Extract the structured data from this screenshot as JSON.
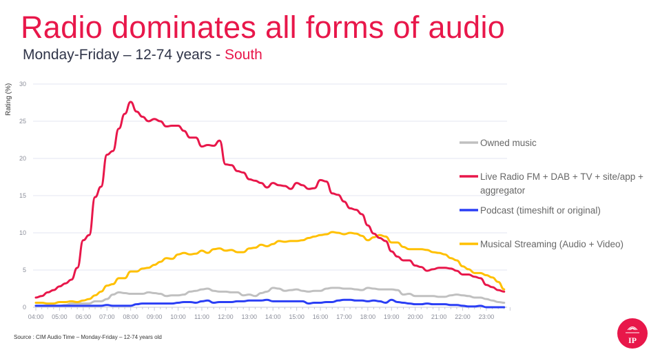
{
  "header": {
    "title": "Radio dominates all forms of audio",
    "subtitle_main": "Monday-Friday – 12-74 years - ",
    "subtitle_region": "South"
  },
  "footer": {
    "source": "Source : CIM Audio Time – Monday-Friday – 12-74 years old",
    "logo_text": "IP"
  },
  "colors": {
    "accent": "#e8174a",
    "owned": "#c0c0c0",
    "radio": "#e8174a",
    "podcast": "#2a3ef5",
    "streaming": "#ffc000"
  },
  "chart_data": {
    "type": "line",
    "title": "Radio dominates all forms of audio",
    "xlabel": "",
    "ylabel": "Rating (%)",
    "ylim": [
      0,
      30
    ],
    "yticks": [
      0,
      5,
      10,
      15,
      20,
      25,
      30
    ],
    "xticks": [
      "04:00",
      "05:00",
      "06:00",
      "07:00",
      "08:00",
      "09:00",
      "10:00",
      "11:00",
      "12:00",
      "13:00",
      "14:00",
      "15:00",
      "16:00",
      "17:00",
      "18:00",
      "19:00",
      "20:00",
      "21:00",
      "22:00",
      "23:00"
    ],
    "x_start_hour": 4,
    "x_step_minutes": 15,
    "grid": true,
    "legend_position": "right",
    "series": [
      {
        "name": "Owned music",
        "color": "#c0c0c0",
        "values": [
          0.2,
          0.2,
          0.2,
          0.2,
          0.2,
          0.3,
          0.5,
          0.5,
          0.5,
          0.5,
          0.8,
          0.8,
          1.1,
          1.7,
          2.0,
          1.9,
          1.8,
          1.8,
          1.8,
          2.0,
          1.9,
          1.8,
          1.5,
          1.6,
          1.6,
          1.7,
          2.1,
          2.2,
          2.4,
          2.5,
          2.2,
          2.1,
          2.1,
          2.0,
          2.0,
          1.6,
          1.7,
          1.5,
          1.9,
          2.1,
          2.6,
          2.5,
          2.2,
          2.3,
          2.4,
          2.2,
          2.1,
          2.2,
          2.2,
          2.5,
          2.6,
          2.6,
          2.5,
          2.5,
          2.4,
          2.3,
          2.6,
          2.5,
          2.4,
          2.4,
          2.4,
          2.3,
          1.7,
          1.8,
          1.5,
          1.5,
          1.5,
          1.5,
          1.4,
          1.4,
          1.6,
          1.7,
          1.6,
          1.5,
          1.3,
          1.3,
          1.1,
          0.9,
          0.7,
          0.6
        ]
      },
      {
        "name": "Live Radio FM + DAB + TV + site/app + aggregator",
        "color": "#e8174a",
        "values": [
          1.3,
          1.5,
          2.0,
          2.3,
          2.8,
          3.2,
          3.7,
          5.3,
          9.0,
          9.7,
          14.8,
          16.2,
          20.5,
          21.0,
          24.0,
          26.0,
          27.6,
          26.3,
          25.6,
          25.0,
          25.3,
          25.0,
          24.3,
          24.4,
          24.4,
          23.7,
          22.8,
          22.8,
          21.6,
          21.8,
          21.7,
          22.4,
          19.2,
          19.1,
          18.3,
          18.1,
          17.2,
          17.0,
          16.7,
          16.1,
          16.7,
          16.4,
          16.3,
          15.9,
          16.7,
          16.4,
          15.9,
          16.0,
          17.1,
          16.9,
          15.3,
          15.1,
          14.2,
          13.3,
          13.1,
          12.5,
          11.0,
          9.9,
          9.3,
          8.9,
          7.5,
          6.8,
          6.3,
          6.3,
          5.6,
          5.4,
          4.9,
          5.1,
          5.3,
          5.3,
          5.2,
          4.9,
          4.4,
          4.4,
          4.1,
          3.9,
          3.0,
          2.7,
          2.3,
          2.1
        ]
      },
      {
        "name": "Podcast (timeshift or original)",
        "color": "#2a3ef5",
        "values": [
          0.2,
          0.2,
          0.2,
          0.2,
          0.2,
          0.2,
          0.2,
          0.2,
          0.2,
          0.2,
          0.2,
          0.2,
          0.3,
          0.2,
          0.2,
          0.2,
          0.2,
          0.4,
          0.5,
          0.5,
          0.5,
          0.5,
          0.5,
          0.5,
          0.6,
          0.7,
          0.7,
          0.6,
          0.8,
          0.9,
          0.6,
          0.7,
          0.7,
          0.7,
          0.8,
          0.8,
          0.9,
          0.9,
          0.9,
          1.0,
          0.8,
          0.8,
          0.8,
          0.8,
          0.8,
          0.8,
          0.5,
          0.6,
          0.6,
          0.7,
          0.7,
          0.9,
          1.0,
          1.0,
          0.9,
          0.9,
          0.8,
          0.9,
          0.8,
          0.6,
          1.0,
          0.7,
          0.6,
          0.5,
          0.4,
          0.4,
          0.5,
          0.4,
          0.4,
          0.4,
          0.3,
          0.3,
          0.2,
          0.1,
          0.1,
          0.2,
          0.0,
          0.0,
          0.0,
          0.0
        ]
      },
      {
        "name": "Musical Streaming (Audio + Video)",
        "color": "#ffc000",
        "values": [
          0.6,
          0.6,
          0.5,
          0.5,
          0.7,
          0.7,
          0.8,
          0.7,
          0.9,
          1.1,
          1.6,
          2.1,
          2.9,
          3.1,
          3.9,
          3.9,
          4.8,
          4.8,
          5.2,
          5.3,
          5.7,
          6.1,
          6.6,
          6.5,
          7.1,
          7.3,
          7.1,
          7.2,
          7.6,
          7.3,
          7.8,
          7.9,
          7.6,
          7.7,
          7.4,
          7.4,
          7.9,
          8.0,
          8.4,
          8.2,
          8.5,
          8.9,
          8.8,
          8.9,
          8.9,
          9.0,
          9.3,
          9.5,
          9.7,
          9.8,
          10.1,
          10.0,
          9.8,
          10.0,
          9.9,
          9.6,
          9.0,
          9.4,
          9.7,
          9.5,
          8.7,
          8.7,
          8.1,
          7.8,
          7.8,
          7.8,
          7.7,
          7.4,
          7.3,
          7.1,
          6.6,
          6.3,
          5.5,
          5.1,
          4.6,
          4.6,
          4.3,
          4.0,
          3.4,
          2.4
        ]
      }
    ],
    "legend_order": [
      0,
      1,
      2,
      3
    ],
    "legend_lines": [
      [
        "Owned music"
      ],
      [
        "Live Radio FM + DAB + TV + site/app +",
        "aggregator"
      ],
      [
        "Podcast (timeshift or original)"
      ],
      [
        "Musical Streaming (Audio + Video)"
      ]
    ]
  }
}
